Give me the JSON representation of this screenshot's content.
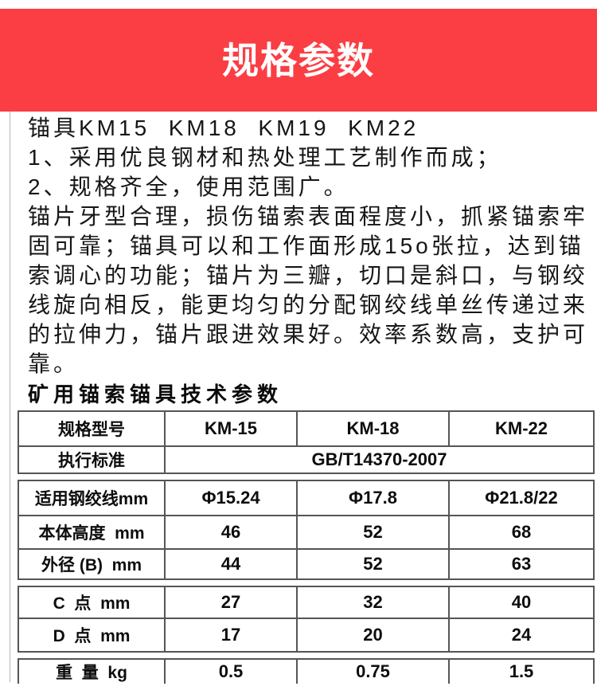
{
  "banner": {
    "title": "规格参数",
    "bg_color": "#fb3e43",
    "text_color": "#ffffff"
  },
  "intro": {
    "lines": [
      "锚具KM15  KM18  KM19  KM22",
      "1、采用优良钢材和热处理工艺制作而成；",
      "2、规格齐全，使用范围广。",
      "锚片牙型合理，损伤锚索表面程度小，抓紧锚索牢",
      "固可靠；锚具可以和工作面形成15o张拉，达到锚",
      "索调心的功能；锚片为三瓣，切口是斜口，与钢绞",
      "线旋向相反，能更均匀的分配钢绞线单丝传递过来",
      "的拉伸力，锚片跟进效果好。效率系数高，支护可",
      "靠。"
    ]
  },
  "section_heading": "矿用锚索锚具技术参数",
  "table": {
    "border_color": "#555555",
    "rows": [
      {
        "label": "规格型号",
        "values": [
          "KM-15",
          "KM-18",
          "KM-22"
        ]
      },
      {
        "label": "执行标准",
        "values": [
          "GB/T14370-2007"
        ],
        "span": 3,
        "seam_after": true
      },
      {
        "label": "适用钢绞线mm",
        "values": [
          "Φ15.24",
          "Φ17.8",
          "Φ21.8/22"
        ]
      },
      {
        "label": "本体高度  mm",
        "values": [
          "46",
          "52",
          "68"
        ]
      },
      {
        "label": "外径 (B)  mm",
        "values": [
          "44",
          "52",
          "63"
        ],
        "seam_after": true
      },
      {
        "label": "C  点  mm",
        "values": [
          "27",
          "32",
          "40"
        ]
      },
      {
        "label": "D  点  mm",
        "values": [
          "17",
          "20",
          "24"
        ],
        "seam_after": true
      },
      {
        "label": "重  量  kg",
        "values": [
          "0.5",
          "0.75",
          "1.5"
        ],
        "cut": true
      }
    ]
  }
}
